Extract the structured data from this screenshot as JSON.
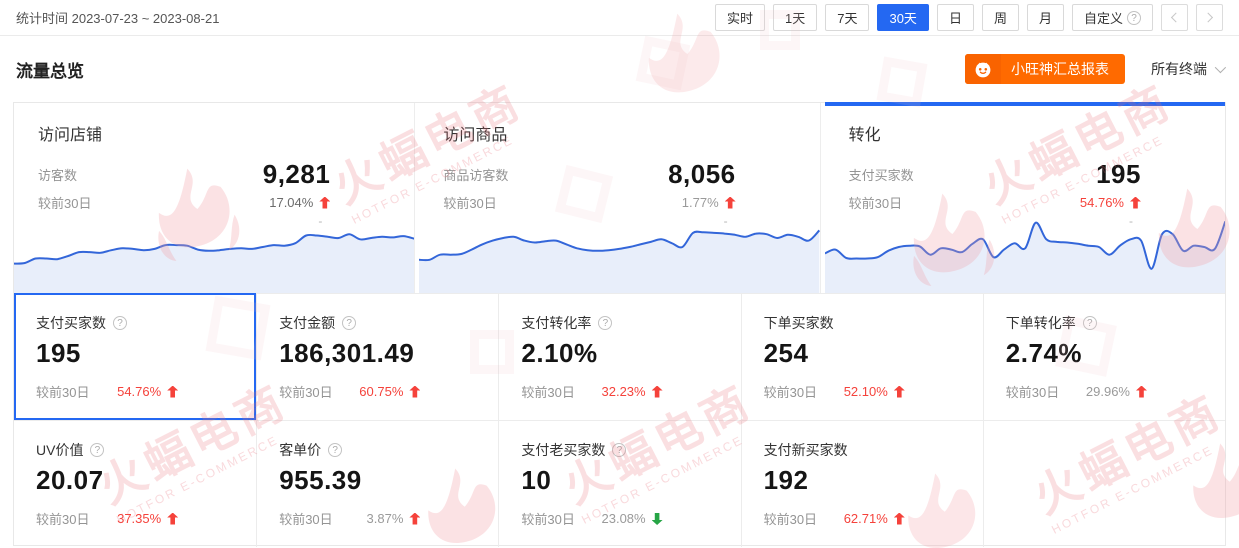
{
  "topbar": {
    "stat_time": "统计时间 2023-07-23 ~ 2023-08-21",
    "ranges": [
      {
        "label": "实时",
        "active": false
      },
      {
        "label": "1天",
        "active": false
      },
      {
        "label": "7天",
        "active": false
      },
      {
        "label": "30天",
        "active": true
      },
      {
        "label": "日",
        "active": false
      },
      {
        "label": "周",
        "active": false
      },
      {
        "label": "月",
        "active": false
      },
      {
        "label": "自定义",
        "active": false,
        "has_help": true
      }
    ]
  },
  "header": {
    "title": "流量总览",
    "report_button_label": "小旺神汇总报表",
    "terminal_selector": "所有终端"
  },
  "icons": {
    "question": "?"
  },
  "overview_cards": [
    {
      "title": "访问店铺",
      "metric_label": "访客数",
      "value": "9,281",
      "compare_label": "较前30日",
      "change": "17.04%",
      "change_color": "#6b6b6b",
      "direction": "up",
      "arrow_color": "#f5423b",
      "extra": "-",
      "selected": false
    },
    {
      "title": "访问商品",
      "metric_label": "商品访客数",
      "value": "8,056",
      "compare_label": "较前30日",
      "change": "1.77%",
      "change_color": "#9a9a9a",
      "direction": "up",
      "arrow_color": "#f5423b",
      "extra": "-",
      "selected": false
    },
    {
      "title": "转化",
      "metric_label": "支付买家数",
      "value": "195",
      "compare_label": "较前30日",
      "change": "54.76%",
      "change_color": "#f5423b",
      "direction": "up",
      "arrow_color": "#f5423b",
      "extra": "-",
      "selected": true
    }
  ],
  "chart_data": [
    {
      "type": "area",
      "name": "访问店铺-访客数趋势(30天)",
      "axes_hidden": true,
      "ylim": [
        0,
        100
      ],
      "values": [
        24,
        25,
        32,
        32,
        31,
        36,
        42,
        42,
        41,
        45,
        48,
        47,
        45,
        47,
        53,
        53,
        52,
        46,
        44,
        45,
        47,
        48,
        47,
        50,
        53,
        52,
        56,
        68,
        68,
        66,
        64,
        70,
        62,
        64,
        66,
        65,
        67,
        63
      ]
    },
    {
      "type": "area",
      "name": "访问商品-商品访客数趋势(30天)",
      "axes_hidden": true,
      "ylim": [
        0,
        100
      ],
      "values": [
        30,
        30,
        38,
        38,
        39,
        46,
        54,
        60,
        64,
        66,
        60,
        57,
        59,
        60,
        54,
        48,
        45,
        44,
        45,
        47,
        50,
        54,
        58,
        62,
        56,
        50,
        72,
        73,
        72,
        71,
        69,
        66,
        71,
        70,
        64,
        69,
        66,
        60,
        76
      ]
    },
    {
      "type": "area",
      "name": "转化-支付买家数趋势(30天)",
      "axes_hidden": true,
      "ylim": [
        0,
        100
      ],
      "values": [
        40,
        46,
        33,
        32,
        32,
        34,
        44,
        50,
        52,
        51,
        38,
        48,
        46,
        42,
        55,
        62,
        34,
        46,
        56,
        48,
        88,
        62,
        58,
        57,
        55,
        52,
        50,
        38,
        52,
        62,
        60,
        16,
        70,
        70,
        44,
        52,
        50,
        47,
        90
      ]
    }
  ],
  "tiles": [
    {
      "label": "支付买家数",
      "has_help": true,
      "value": "195",
      "compare_label": "较前30日",
      "change": "54.76%",
      "change_color": "#f5423b",
      "direction": "up",
      "arrow_color": "#f5423b",
      "selected": true
    },
    {
      "label": "支付金额",
      "has_help": true,
      "value": "186,301.49",
      "compare_label": "较前30日",
      "change": "60.75%",
      "change_color": "#f5423b",
      "direction": "up",
      "arrow_color": "#f5423b",
      "selected": false
    },
    {
      "label": "支付转化率",
      "has_help": true,
      "value": "2.10%",
      "compare_label": "较前30日",
      "change": "32.23%",
      "change_color": "#f5423b",
      "direction": "up",
      "arrow_color": "#f5423b",
      "selected": false
    },
    {
      "label": "下单买家数",
      "has_help": false,
      "value": "254",
      "compare_label": "较前30日",
      "change": "52.10%",
      "change_color": "#f5423b",
      "direction": "up",
      "arrow_color": "#f5423b",
      "selected": false
    },
    {
      "label": "下单转化率",
      "has_help": true,
      "value": "2.74%",
      "compare_label": "较前30日",
      "change": "29.96%",
      "change_color": "#9a9a9a",
      "direction": "up",
      "arrow_color": "#f5423b",
      "selected": false
    },
    {
      "label": "UV价值",
      "has_help": true,
      "value": "20.07",
      "compare_label": "较前30日",
      "change": "37.35%",
      "change_color": "#f5423b",
      "direction": "up",
      "arrow_color": "#f5423b",
      "selected": false
    },
    {
      "label": "客单价",
      "has_help": true,
      "value": "955.39",
      "compare_label": "较前30日",
      "change": "3.87%",
      "change_color": "#9a9a9a",
      "direction": "up",
      "arrow_color": "#f5423b",
      "selected": false
    },
    {
      "label": "支付老买家数",
      "has_help": true,
      "value": "10",
      "compare_label": "较前30日",
      "change": "23.08%",
      "change_color": "#9a9a9a",
      "direction": "down",
      "arrow_color": "#27a546",
      "selected": false
    },
    {
      "label": "支付新买家数",
      "has_help": false,
      "value": "192",
      "compare_label": "较前30日",
      "change": "62.71%",
      "change_color": "#f5423b",
      "direction": "up",
      "arrow_color": "#f5423b",
      "selected": false
    }
  ],
  "watermark": {
    "cn": "火蝠电商",
    "en": "HOTFOR E-COMMERCE"
  },
  "colors": {
    "accent_blue": "#2468f2",
    "orange": "#ff6a00",
    "red": "#f5423b",
    "green": "#27a546",
    "chart_line": "#3366d9",
    "chart_fill": "#e8eefa",
    "border": "#e8e8e8"
  }
}
